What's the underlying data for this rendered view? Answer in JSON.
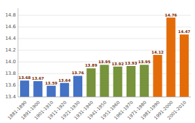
{
  "chart_data": {
    "type": "bar",
    "categories": [
      "1881-1890",
      "1891-1900",
      "1901-1910",
      "1911-1920",
      "1921-1930",
      "1931-1940",
      "1941-1950",
      "1951-1960",
      "1961-1970",
      "1971-1980",
      "1981-1990",
      "1991-2000",
      "2001-2010"
    ],
    "values": [
      13.68,
      13.67,
      13.59,
      13.64,
      13.76,
      13.89,
      13.95,
      13.92,
      13.93,
      13.95,
      14.12,
      14.76,
      14.47
    ],
    "colors": [
      "#4472c4",
      "#4472c4",
      "#4472c4",
      "#4472c4",
      "#4472c4",
      "#77933c",
      "#77933c",
      "#77933c",
      "#77933c",
      "#77933c",
      "#e36c09",
      "#e36c09",
      "#e36c09"
    ],
    "ylim": [
      13.4,
      14.92
    ],
    "yticks": [
      13.4,
      13.6,
      13.8,
      {
        "value": 14.0,
        "label": "14.0"
      },
      14.2,
      14.4,
      14.6,
      14.8
    ],
    "grid": true,
    "data_labels": true
  }
}
